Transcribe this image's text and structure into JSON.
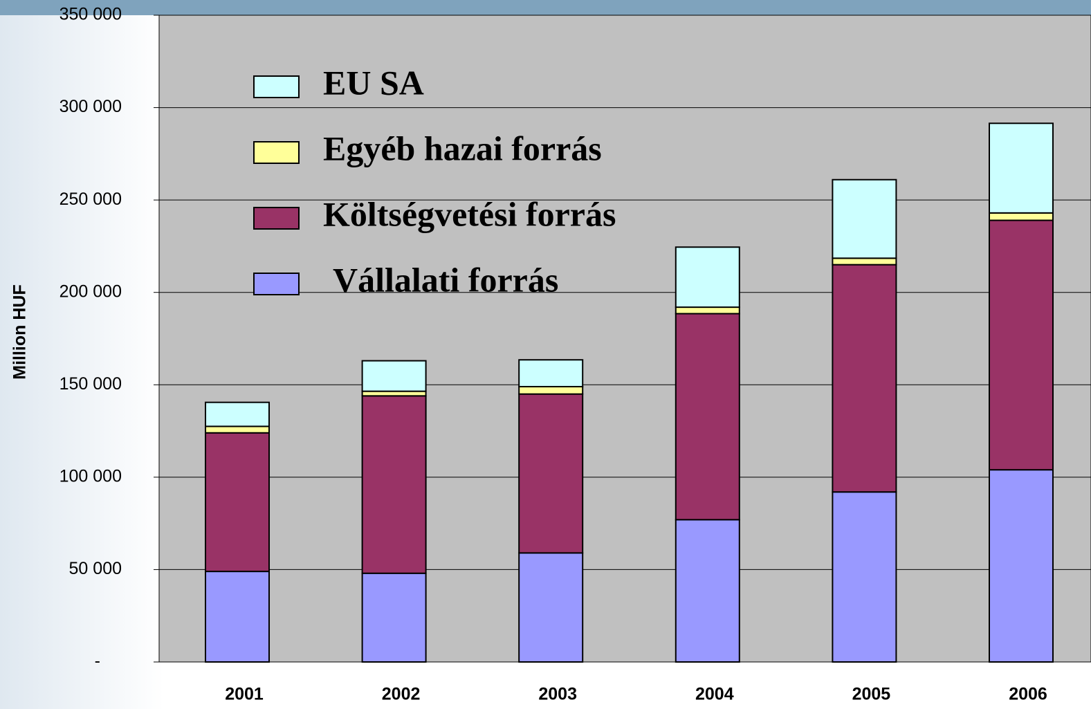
{
  "chart_data": {
    "type": "stacked_bar",
    "y_label": "Million HUF",
    "categories": [
      "2001",
      "2002",
      "2003",
      "2004",
      "2005",
      "2006"
    ],
    "series": [
      {
        "name": "Vállalati forrás",
        "color": "#9999ff",
        "values": [
          49000,
          48000,
          59000,
          77000,
          92000,
          104000
        ]
      },
      {
        "name": "Költségvetési forrás",
        "color": "#993366",
        "values": [
          75000,
          96000,
          86000,
          111500,
          123000,
          135000
        ]
      },
      {
        "name": "Egyéb hazai forrás",
        "color": "#ffff99",
        "values": [
          3500,
          2500,
          4000,
          3500,
          3500,
          4000
        ]
      },
      {
        "name": "EU SA",
        "color": "#ccffff",
        "values": [
          13000,
          16500,
          14500,
          32500,
          42500,
          48500
        ]
      }
    ],
    "ylim": [
      0,
      350000
    ],
    "yticks": [
      {
        "value": 0,
        "label": "-"
      },
      {
        "value": 50000,
        "label": "50 000"
      },
      {
        "value": 100000,
        "label": "100 000"
      },
      {
        "value": 150000,
        "label": "150 000"
      },
      {
        "value": 200000,
        "label": "200 000"
      },
      {
        "value": 250000,
        "label": "250 000"
      },
      {
        "value": 300000,
        "label": "300 000"
      },
      {
        "value": 350000,
        "label": "350 000"
      }
    ],
    "grid": true
  }
}
